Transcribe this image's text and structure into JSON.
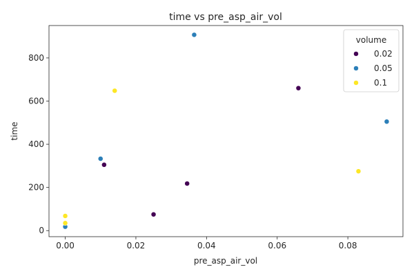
{
  "chart_data": {
    "type": "scatter",
    "title": "time vs pre_asp_air_vol",
    "xlabel": "pre_asp_air_vol",
    "ylabel": "time",
    "xlim": [
      -0.0046,
      0.0956
    ],
    "ylim": [
      -28,
      950
    ],
    "xticks": [
      0.0,
      0.02,
      0.04,
      0.06,
      0.08
    ],
    "xtick_labels": [
      "0.00",
      "0.02",
      "0.04",
      "0.06",
      "0.08"
    ],
    "yticks": [
      0,
      200,
      400,
      600,
      800
    ],
    "ytick_labels": [
      "0",
      "200",
      "400",
      "600",
      "800"
    ],
    "grid": false,
    "legend": {
      "title": "volume",
      "placement": "top-right"
    },
    "series": [
      {
        "name": "0.02",
        "color": "#440154",
        "x": [
          0.011,
          0.025,
          0.0345,
          0.066
        ],
        "y": [
          305,
          75,
          218,
          660
        ]
      },
      {
        "name": "0.05",
        "color": "#2c7fb8",
        "x": [
          0.0,
          0.01,
          0.0365,
          0.091
        ],
        "y": [
          18,
          333,
          907,
          505
        ]
      },
      {
        "name": "0.1",
        "color": "#fde725",
        "x": [
          0.0,
          0.0,
          0.014,
          0.083
        ],
        "y": [
          68,
          35,
          648,
          275
        ]
      }
    ]
  }
}
